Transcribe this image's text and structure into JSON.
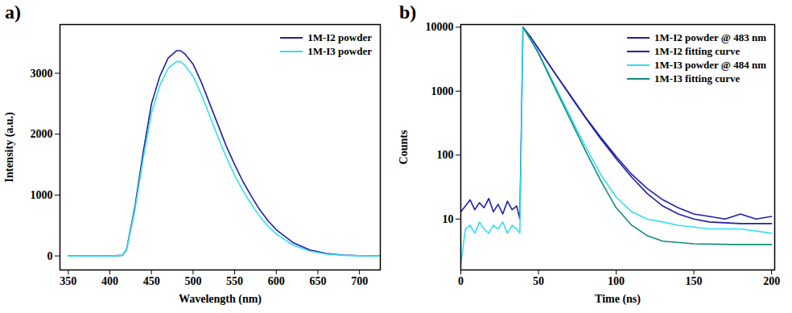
{
  "chart_data": [
    {
      "type": "line",
      "title": "a)",
      "x_label": "Wavelength (nm)",
      "y_label": "Intensity (a.u.)",
      "xlim": [
        340,
        725
      ],
      "xticks": [
        350,
        400,
        450,
        500,
        550,
        600,
        650,
        700
      ],
      "ylim": [
        -230,
        3800
      ],
      "yticks": [
        0,
        1000,
        2000,
        3000
      ],
      "grid": false,
      "legend": "top-right",
      "series": [
        {
          "name": "1M-I2 powder",
          "color": "#1f1fa8",
          "x": [
            350,
            400,
            415,
            420,
            430,
            440,
            450,
            460,
            470,
            480,
            485,
            490,
            500,
            510,
            520,
            530,
            540,
            550,
            560,
            570,
            580,
            590,
            600,
            620,
            640,
            660,
            680,
            700,
            725
          ],
          "values": [
            0,
            0,
            10,
            100,
            800,
            1700,
            2500,
            2950,
            3250,
            3370,
            3370,
            3320,
            3150,
            2850,
            2500,
            2150,
            1800,
            1500,
            1220,
            980,
            760,
            580,
            430,
            220,
            100,
            40,
            15,
            5,
            0
          ]
        },
        {
          "name": "1M-I3 powder",
          "color": "#33dff0",
          "x": [
            350,
            400,
            415,
            420,
            430,
            440,
            450,
            460,
            470,
            480,
            485,
            490,
            500,
            510,
            520,
            530,
            540,
            550,
            560,
            570,
            580,
            590,
            600,
            620,
            640,
            660,
            680,
            700,
            725
          ],
          "values": [
            0,
            0,
            10,
            95,
            750,
            1600,
            2350,
            2800,
            3080,
            3190,
            3190,
            3130,
            2950,
            2650,
            2300,
            1950,
            1620,
            1320,
            1070,
            850,
            650,
            490,
            360,
            180,
            80,
            30,
            10,
            3,
            0
          ]
        }
      ]
    },
    {
      "type": "line",
      "title": "b)",
      "x_label": "Time (ns)",
      "y_label": "Counts",
      "log": "y",
      "xlim": [
        0,
        202
      ],
      "xticks": [
        0,
        50,
        100,
        150,
        200
      ],
      "ylim": [
        1.6,
        11000
      ],
      "yticks": [
        10,
        100,
        1000,
        10000
      ],
      "grid": false,
      "legend": "top-right",
      "series": [
        {
          "name": "1M-I2 powder @ 483 nm",
          "color": "#1f1fa8",
          "x": [
            0,
            3,
            6,
            9,
            12,
            15,
            18,
            21,
            24,
            27,
            30,
            33,
            36,
            38,
            40,
            45,
            50,
            60,
            70,
            80,
            90,
            100,
            110,
            120,
            130,
            140,
            150,
            160,
            170,
            180,
            190,
            200
          ],
          "values": [
            13,
            16,
            20,
            14,
            18,
            15,
            21,
            13,
            17,
            12,
            19,
            14,
            16,
            10,
            10000,
            7000,
            4600,
            2000,
            900,
            400,
            190,
            95,
            50,
            30,
            20,
            15,
            12,
            11,
            10,
            12,
            10,
            11
          ]
        },
        {
          "name": "1M-I2 fitting curve",
          "color": "#1f1fa8",
          "x": [
            40,
            45,
            50,
            60,
            70,
            80,
            90,
            100,
            110,
            120,
            130,
            140,
            150,
            160,
            180,
            200
          ],
          "values": [
            10000,
            6900,
            4600,
            2000,
            880,
            390,
            180,
            88,
            45,
            25,
            16,
            12,
            10,
            9,
            8.5,
            8.5
          ]
        },
        {
          "name": "1M-I3 powder @ 484 nm",
          "color": "#33dff0",
          "x": [
            0,
            3,
            6,
            9,
            12,
            15,
            18,
            21,
            24,
            27,
            30,
            33,
            36,
            38,
            40,
            45,
            50,
            60,
            70,
            80,
            90,
            100,
            110,
            120,
            130,
            140,
            160,
            180,
            200
          ],
          "values": [
            2,
            7,
            8,
            6,
            9,
            7,
            6,
            8,
            7,
            9,
            6,
            8,
            7,
            6,
            10000,
            6500,
            4000,
            1300,
            420,
            140,
            50,
            22,
            13,
            10,
            9,
            8,
            7,
            7,
            6
          ]
        },
        {
          "name": "1M-I3 fitting curve",
          "color": "#0f8a7e",
          "x": [
            40,
            45,
            50,
            60,
            70,
            80,
            90,
            100,
            110,
            120,
            130,
            150,
            175,
            200
          ],
          "values": [
            10000,
            6300,
            3900,
            1200,
            380,
            120,
            40,
            15,
            8,
            5.5,
            4.5,
            4.1,
            4,
            4
          ]
        }
      ]
    }
  ]
}
